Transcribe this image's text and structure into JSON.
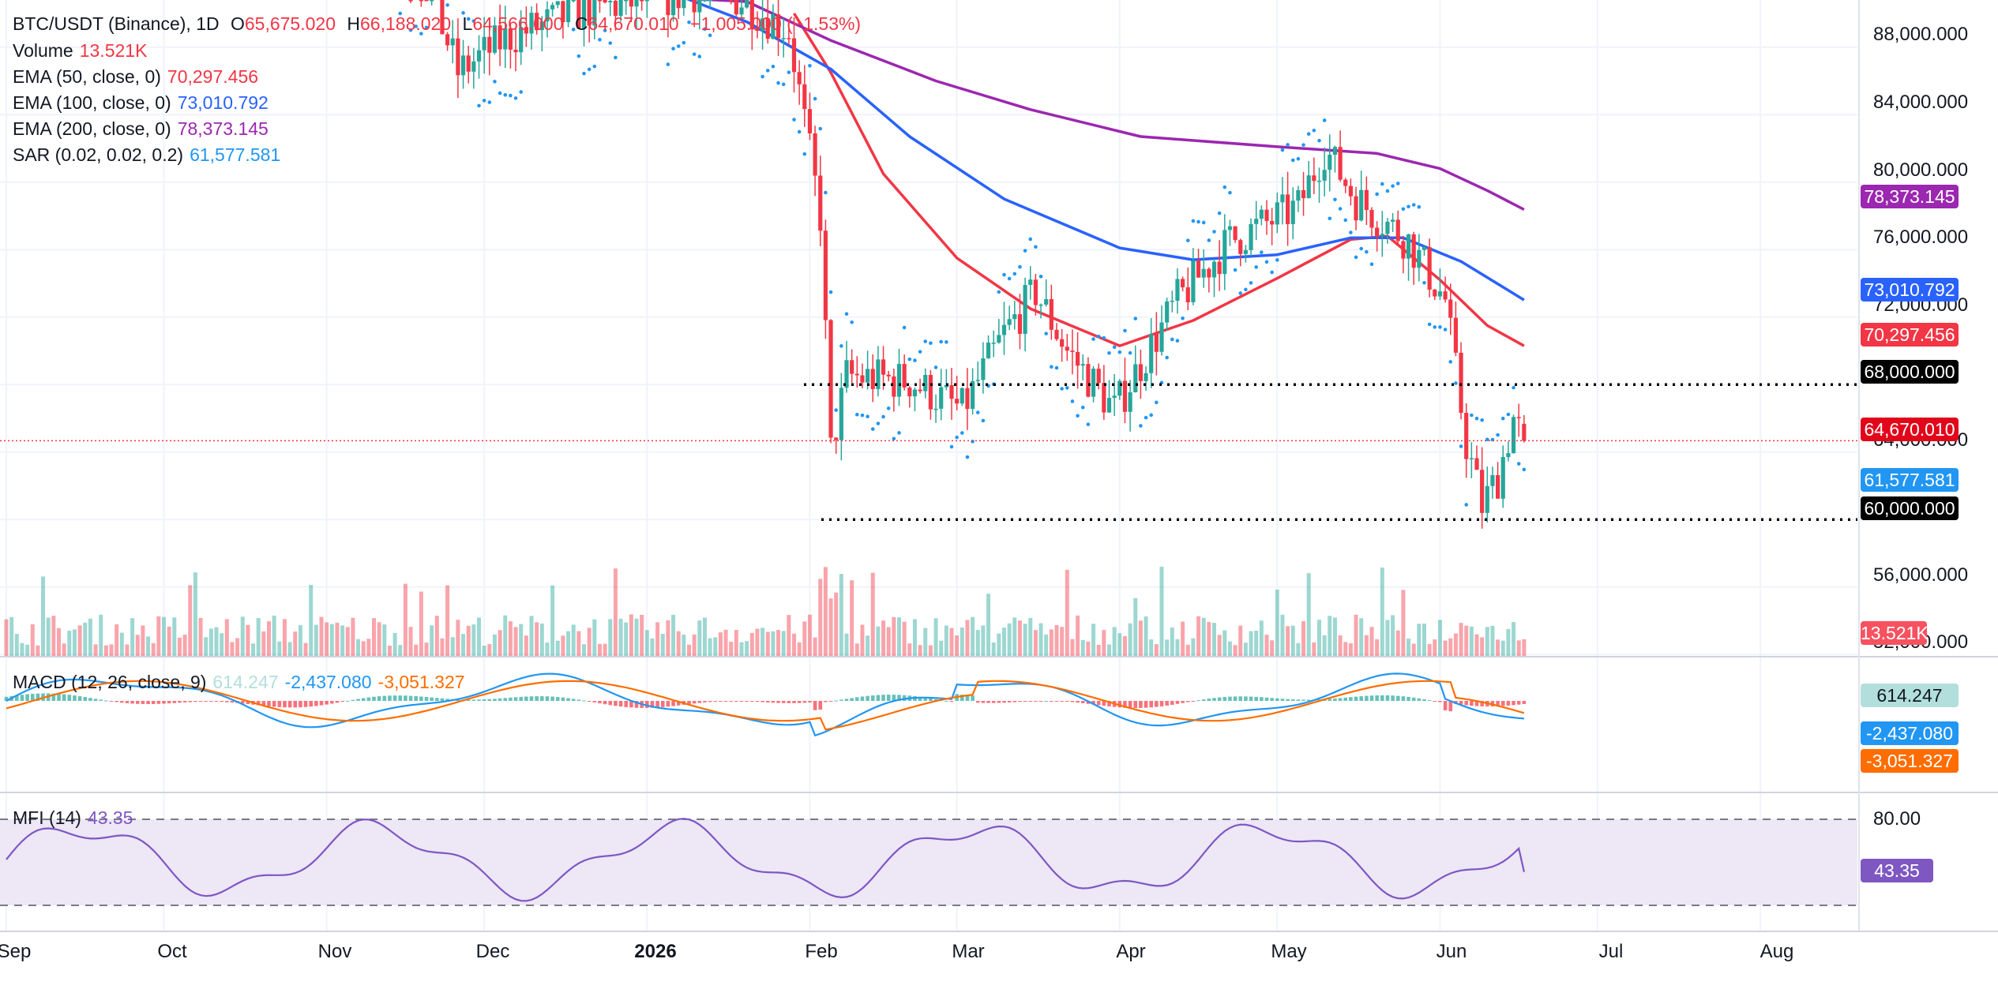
{
  "header": {
    "symbol": "BTC/USDT (Binance), 1D",
    "o_label": "O",
    "o_value": "65,675.020",
    "h_label": "H",
    "h_value": "66,188.020",
    "l_label": "L",
    "l_value": "64,566.000",
    "c_label": "C",
    "c_value": "64,670.010",
    "change": "−1,005.000 (−1.53%)"
  },
  "legend": {
    "volume_label": "Volume",
    "volume_value": "13.521K",
    "ema50_label": "EMA (50, close, 0)",
    "ema50_value": "70,297.456",
    "ema100_label": "EMA (100, close, 0)",
    "ema100_value": "73,010.792",
    "ema200_label": "EMA (200, close, 0)",
    "ema200_value": "78,373.145",
    "sar_label": "SAR (0.02, 0.02, 0.2)",
    "sar_value": "61,577.581",
    "macd_label": "MACD (12, 26, close, 9)",
    "macd_hist": "614.247",
    "macd_line": "-2,437.080",
    "macd_signal": "-3,051.327",
    "mfi_label": "MFI (14)",
    "mfi_value": "43.35"
  },
  "price_axis": {
    "ticks": [
      "88,000.000",
      "84,000.000",
      "80,000.000",
      "76,000.000",
      "72,000.000",
      "64,000.000",
      "56,000.000",
      "52,000.000"
    ],
    "macd_ticks": [],
    "mfi_ticks": [
      "80.00"
    ]
  },
  "time_axis": {
    "labels": [
      "Sep",
      "Oct",
      "Nov",
      "Dec",
      "2026",
      "Feb",
      "Mar",
      "Apr",
      "May",
      "Jun",
      "Jul",
      "Aug"
    ]
  },
  "badges": {
    "ema200": "78,373.145",
    "ema100": "73,010.792",
    "ema50": "70,297.456",
    "level_high": "68,000.000",
    "last_price": "64,670.010",
    "sar": "61,577.581",
    "level_low": "60,000.000",
    "volume": "13.521K",
    "macd_hist": "614.247",
    "macd_line": "-2,437.080",
    "macd_signal": "-3,051.327",
    "mfi": "43.35"
  },
  "colors": {
    "up": "#26a69a",
    "down": "#f23645",
    "ema50": "#f23645",
    "ema100": "#2962ff",
    "ema200": "#9c27b0",
    "sar": "#2196f3",
    "macd": "#2196f3",
    "signal": "#ff6d00",
    "mfi": "#7e57c2",
    "mfi_band": "#ede7f6"
  },
  "chart_data": {
    "type": "candlestick",
    "title": "BTC/USDT (Binance), 1D",
    "last": {
      "open": 65675.02,
      "high": 66188.02,
      "low": 64566.0,
      "close": 64670.01,
      "volume": "13.521K"
    },
    "ylim": [
      50000,
      90500
    ],
    "x_range": [
      "2025-09-01",
      "2026-08-22"
    ],
    "horizontal_levels": [
      68000,
      60000
    ],
    "series": [
      {
        "name": "EMA (50, close, 0)",
        "last": 70297.456,
        "points": [
          [
            "2026-01-29",
            90000
          ],
          [
            "2026-02-05",
            86500
          ],
          [
            "2026-02-15",
            80500
          ],
          [
            "2026-03-01",
            75500
          ],
          [
            "2026-03-15",
            72500
          ],
          [
            "2026-04-01",
            70300
          ],
          [
            "2026-04-15",
            71800
          ],
          [
            "2026-05-01",
            74300
          ],
          [
            "2026-05-15",
            76600
          ],
          [
            "2026-05-22",
            76800
          ],
          [
            "2026-06-01",
            74200
          ],
          [
            "2026-06-10",
            71500
          ],
          [
            "2026-06-17",
            70297
          ]
        ]
      },
      {
        "name": "EMA (100, close, 0)",
        "last": 73010.792,
        "points": [
          [
            "2026-01-05",
            91300
          ],
          [
            "2026-01-20",
            89500
          ],
          [
            "2026-02-05",
            86700
          ],
          [
            "2026-02-20",
            82700
          ],
          [
            "2026-03-10",
            79000
          ],
          [
            "2026-04-01",
            76100
          ],
          [
            "2026-04-15",
            75400
          ],
          [
            "2026-05-01",
            75700
          ],
          [
            "2026-05-15",
            76700
          ],
          [
            "2026-05-25",
            76700
          ],
          [
            "2026-06-05",
            75300
          ],
          [
            "2026-06-17",
            73011
          ]
        ]
      },
      {
        "name": "EMA (200, close, 0)",
        "last": 78373.145,
        "points": [
          [
            "2026-01-01",
            91000
          ],
          [
            "2026-01-20",
            90700
          ],
          [
            "2026-02-05",
            88400
          ],
          [
            "2026-02-25",
            86000
          ],
          [
            "2026-03-15",
            84300
          ],
          [
            "2026-04-05",
            82700
          ],
          [
            "2026-05-01",
            82100
          ],
          [
            "2026-05-20",
            81700
          ],
          [
            "2026-06-01",
            80800
          ],
          [
            "2026-06-10",
            79500
          ],
          [
            "2026-06-17",
            78373
          ]
        ]
      },
      {
        "name": "SAR (0.02, 0.02, 0.2)",
        "last": 61577.581
      }
    ],
    "volume_last": "13.521K",
    "macd": {
      "name": "MACD (12, 26, close, 9)",
      "histogram": 614.247,
      "macd": -2437.08,
      "signal": -3051.327
    },
    "mfi": {
      "name": "MFI (14)",
      "value": 43.35,
      "upper_band": 80,
      "lower_band": 20
    }
  }
}
